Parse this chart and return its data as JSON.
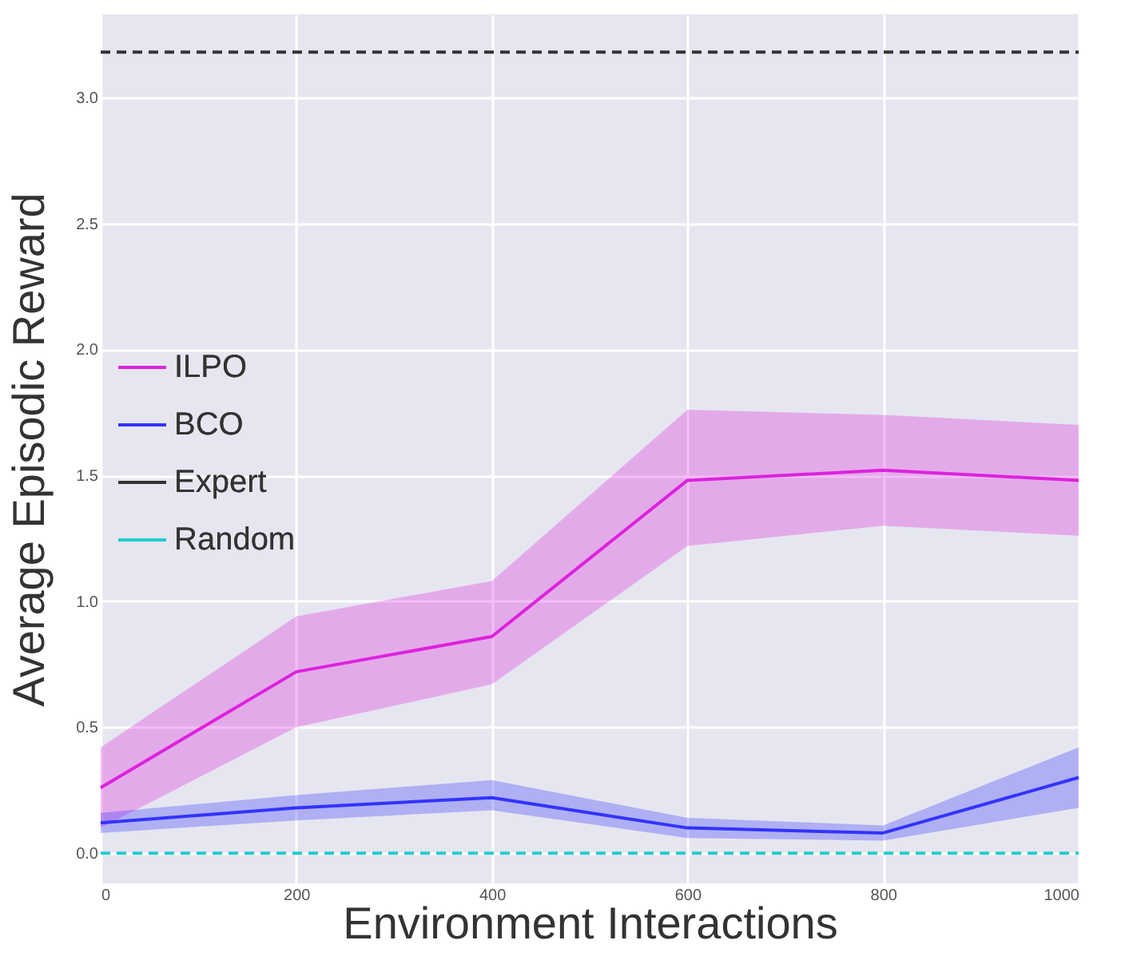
{
  "chart_data": {
    "type": "line",
    "xlabel": "Environment Interactions",
    "ylabel": "Average Episodic Reward",
    "x": [
      0,
      200,
      400,
      600,
      800,
      1000
    ],
    "xlim": [
      0,
      1000
    ],
    "xticks": [
      0,
      200,
      400,
      600,
      800,
      1000
    ],
    "ylim": [
      -0.12,
      3.33
    ],
    "yticks": [
      {
        "value": 0,
        "label": "0.0"
      },
      {
        "value": 0.5,
        "label": "0.5"
      },
      {
        "value": 1,
        "label": "1.0"
      },
      {
        "value": 1.5,
        "label": "1.5"
      },
      {
        "value": 2,
        "label": "2.0"
      },
      {
        "value": 2.5,
        "label": "2.5"
      },
      {
        "value": 3,
        "label": "3.0"
      }
    ],
    "grid": true,
    "legend": "left",
    "marker": "none",
    "series": [
      {
        "name": "ILPO",
        "color": "#dd22dd",
        "values": [
          0.26,
          0.72,
          0.86,
          1.48,
          1.52,
          1.48
        ],
        "lower": [
          0.1,
          0.5,
          0.67,
          1.22,
          1.3,
          1.26
        ],
        "upper": [
          0.42,
          0.94,
          1.08,
          1.76,
          1.74,
          1.7
        ]
      },
      {
        "name": "BCO",
        "color": "#3333ff",
        "values": [
          0.12,
          0.18,
          0.22,
          0.1,
          0.08,
          0.3
        ],
        "lower": [
          0.08,
          0.13,
          0.17,
          0.06,
          0.05,
          0.18
        ],
        "upper": [
          0.16,
          0.23,
          0.29,
          0.14,
          0.11,
          0.42
        ]
      },
      {
        "name": "Expert",
        "color": "#333333",
        "line_style": "dashed",
        "values": [
          3.18,
          3.18,
          3.18,
          3.18,
          3.18,
          3.18
        ]
      },
      {
        "name": "Random",
        "color": "#22cccc",
        "line_style": "dashed",
        "values": [
          0,
          0,
          0,
          0,
          0,
          0
        ]
      }
    ]
  }
}
